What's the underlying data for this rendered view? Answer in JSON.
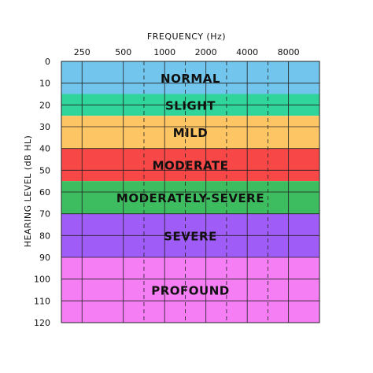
{
  "chart_data": {
    "type": "table",
    "title": "",
    "xlabel": "FREQUENCY (Hz)",
    "ylabel": "HEARING LEVEL (dB HL)",
    "x_ticks": [
      "250",
      "500",
      "1000",
      "2000",
      "4000",
      "8000"
    ],
    "ylim": [
      0,
      120
    ],
    "y_ticks": [
      0,
      10,
      20,
      30,
      40,
      50,
      60,
      70,
      80,
      90,
      100,
      110,
      120
    ],
    "y_inverted": true,
    "grid": true,
    "bands": [
      {
        "label": "NORMAL",
        "from": 0,
        "to": 15,
        "color": "#72c5ec"
      },
      {
        "label": "SLIGHT",
        "from": 15,
        "to": 25,
        "color": "#2fd59a"
      },
      {
        "label": "MILD",
        "from": 25,
        "to": 40,
        "color": "#fec564"
      },
      {
        "label": "MODERATE",
        "from": 40,
        "to": 55,
        "color": "#f74747"
      },
      {
        "label": "MODERATELY-SEVERE",
        "from": 55,
        "to": 70,
        "color": "#3dbd5f"
      },
      {
        "label": "SEVERE",
        "from": 70,
        "to": 90,
        "color": "#a05cf6"
      },
      {
        "label": "PROFOUND",
        "from": 90,
        "to": 120,
        "color": "#f57ef5"
      }
    ]
  }
}
